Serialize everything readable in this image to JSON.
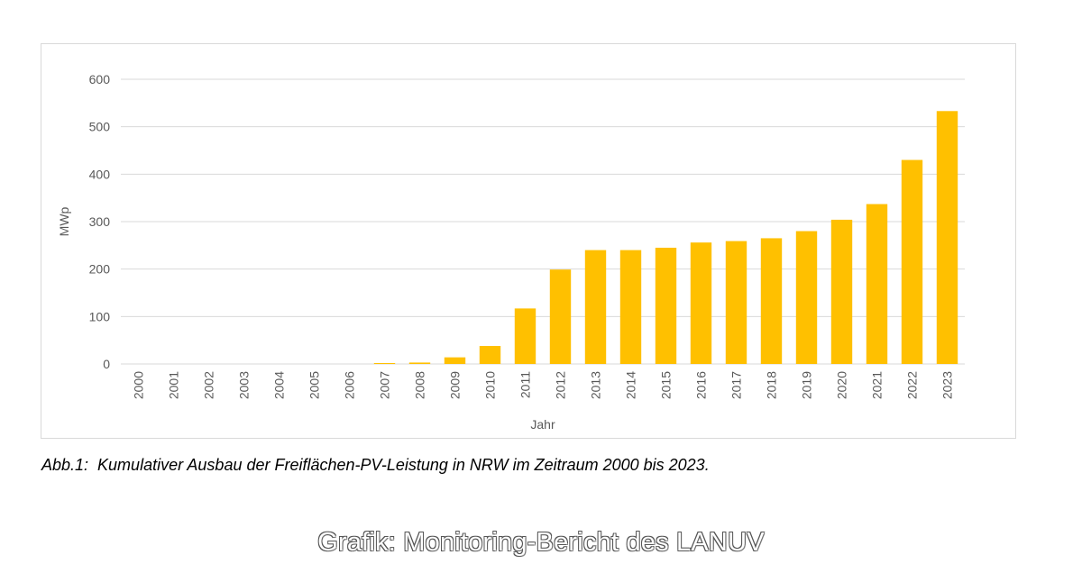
{
  "chart_data": {
    "type": "bar",
    "title": "",
    "xlabel": "Jahr",
    "ylabel": "MWp",
    "ylim": [
      0,
      600
    ],
    "yticks": [
      0,
      100,
      200,
      300,
      400,
      500,
      600
    ],
    "grid": true,
    "legend": "none",
    "bar_color": "#ffc000",
    "categories": [
      "2000",
      "2001",
      "2002",
      "2003",
      "2004",
      "2005",
      "2006",
      "2007",
      "2008",
      "2009",
      "2010",
      "2011",
      "2012",
      "2013",
      "2014",
      "2015",
      "2016",
      "2017",
      "2018",
      "2019",
      "2020",
      "2021",
      "2022",
      "2023"
    ],
    "values": [
      0,
      0,
      0,
      0,
      0,
      0,
      0,
      2,
      3,
      14,
      38,
      117,
      199,
      240,
      240,
      245,
      256,
      259,
      265,
      280,
      304,
      337,
      430,
      533
    ]
  },
  "caption": "Abb.1:  Kumulativer Ausbau der Freiflächen-PV-Leistung in NRW im Zeitraum 2000 bis 2023.",
  "watermark": "Grafik: Monitoring-Bericht des LANUV"
}
